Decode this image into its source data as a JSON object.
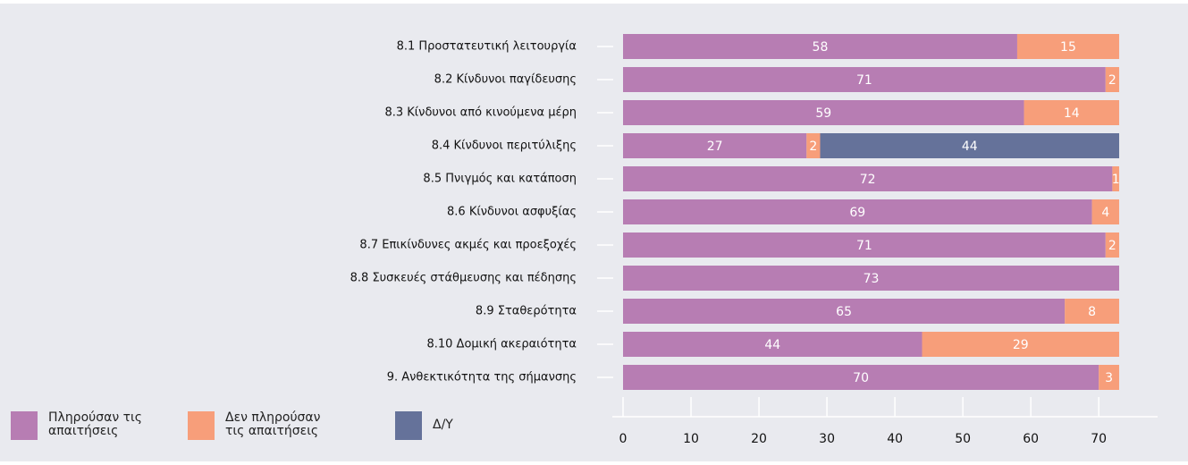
{
  "chart_data": {
    "type": "bar",
    "orientation": "horizontal",
    "stacked": true,
    "categories": [
      "8.1 Προστατευτική λειτουργία",
      "8.2 Κίνδυνοι παγίδευσης",
      "8.3 Κίνδυνοι από κινούμενα μέρη",
      "8.4 Κίνδυνοι περιτύλιξης",
      "8.5 Πνιγμός και κατάποση",
      "8.6 Κίνδυνοι ασφυξίας",
      "8.7 Επικίνδυνες ακμές και προεξοχές",
      "8.8 Συσκευές στάθμευσης και πέδησης",
      "8.9 Σταθερότητα",
      "8.10 Δομική ακεραιότητα",
      "9. Ανθεκτικότητα της σήμανσης"
    ],
    "series": [
      {
        "name": "Πληρούσαν τις απαιτήσεις",
        "color": "#b77db3",
        "values": [
          58,
          71,
          59,
          27,
          72,
          69,
          71,
          73,
          65,
          44,
          70
        ]
      },
      {
        "name": "Δεν πληρούσαν τις απαιτήσεις",
        "color": "#f79e7a",
        "values": [
          15,
          2,
          14,
          2,
          1,
          4,
          2,
          null,
          8,
          29,
          3
        ]
      },
      {
        "name": "Δ/Υ",
        "color": "#65729a",
        "values": [
          null,
          null,
          null,
          44,
          null,
          null,
          null,
          null,
          null,
          null,
          null
        ]
      }
    ],
    "xlim": [
      0,
      78
    ],
    "xticks": [
      0,
      10,
      20,
      30,
      40,
      50,
      60,
      70
    ]
  }
}
